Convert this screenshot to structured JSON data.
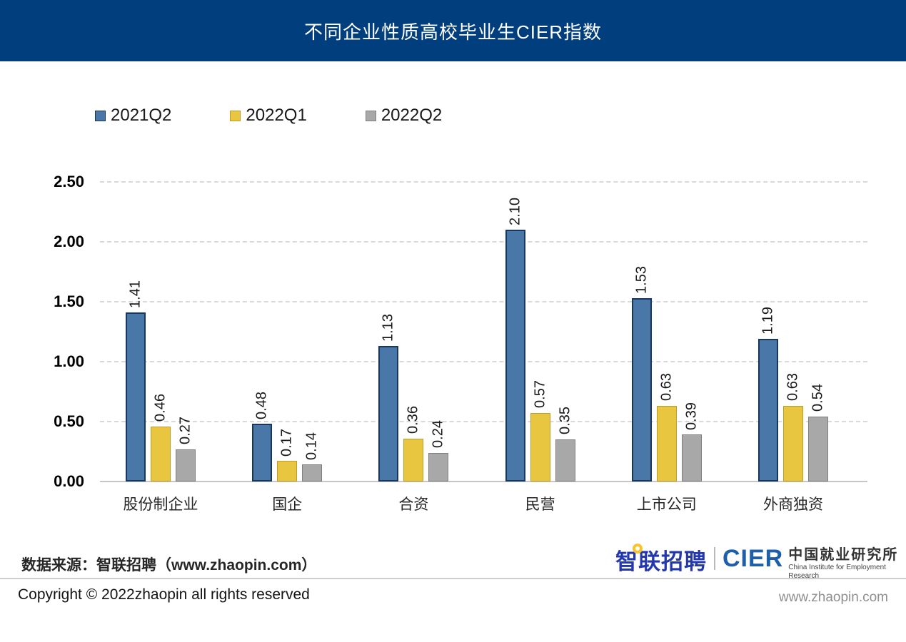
{
  "header": {
    "title": "不同企业性质高校毕业生CIER指数"
  },
  "colors": {
    "header_bg": "#003e7e",
    "grid_line": "#d9d9d9",
    "axis_line": "#c6c6c6",
    "series_blue": "#4978a8",
    "series_yellow": "#e9c63f",
    "series_gray": "#a8a8a8"
  },
  "chart_data": {
    "type": "bar",
    "title": "不同企业性质高校毕业生CIER指数",
    "categories": [
      "股份制企业",
      "国企",
      "合资",
      "民营",
      "上市公司",
      "外商独资"
    ],
    "series": [
      {
        "name": "2021Q2",
        "color": "#4978a8",
        "border_color": "#17375e",
        "border_width": 2,
        "values": [
          1.41,
          0.48,
          1.13,
          2.1,
          1.53,
          1.19
        ],
        "labels": [
          "1.41",
          "0.48",
          "1.13",
          "2.10",
          "1.53",
          "1.19"
        ]
      },
      {
        "name": "2022Q1",
        "color": "#e9c63f",
        "border_color": "#c29b24",
        "border_width": 1,
        "values": [
          0.46,
          0.17,
          0.36,
          0.57,
          0.63,
          0.63
        ],
        "labels": [
          "0.46",
          "0.17",
          "0.36",
          "0.57",
          "0.63",
          "0.63"
        ]
      },
      {
        "name": "2022Q2",
        "color": "#a8a8a8",
        "border_color": "#7f7f7f",
        "border_width": 1,
        "values": [
          0.27,
          0.14,
          0.24,
          0.35,
          0.39,
          0.54
        ],
        "labels": [
          "0.27",
          "0.14",
          "0.24",
          "0.35",
          "0.39",
          "0.54"
        ]
      }
    ],
    "ylim": [
      0,
      2.5
    ],
    "yticks": [
      "0.00",
      "0.50",
      "1.00",
      "1.50",
      "2.00",
      "2.50"
    ],
    "grid": "horizontal-dashed",
    "legend_position": "top-left",
    "value_labels_rotation": "vertical"
  },
  "footer": {
    "source_label": "数据来源：智联招聘（www.zhaopin.com）",
    "zhaopin_logo_text": "智联招聘",
    "cier_logo_text": "CIER",
    "cier_cn": "中国就业研究所",
    "cier_en": "China Institute for Employment Research"
  },
  "bottom_bar": {
    "copyright": "Copyright © 2022zhaopin all rights reserved",
    "website": "www.zhaopin.com"
  }
}
